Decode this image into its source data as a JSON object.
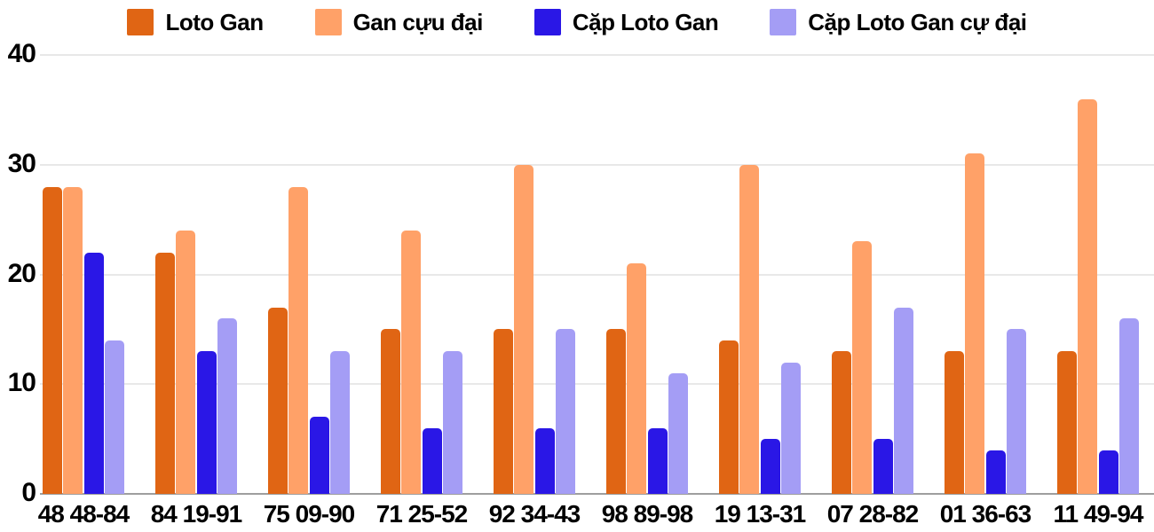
{
  "colors": {
    "background": "#ffffff",
    "grid": "#e8e8e8",
    "baseline": "#9e9e9e",
    "text": "#000000"
  },
  "chart_data": {
    "type": "bar",
    "categories": [
      "48 48-84",
      "84 19-91",
      "75 09-90",
      "71 25-52",
      "92 34-43",
      "98 89-98",
      "19 13-31",
      "07 28-82",
      "01 36-63",
      "11 49-94"
    ],
    "series": [
      {
        "name": "Loto Gan",
        "color": "#e06514",
        "values": [
          28,
          22,
          17,
          15,
          15,
          15,
          14,
          13,
          13,
          13
        ]
      },
      {
        "name": "Gan cựu đại",
        "color": "#ffa168",
        "values": [
          28,
          24,
          28,
          24,
          30,
          21,
          30,
          23,
          31,
          36
        ]
      },
      {
        "name": "Cặp Loto Gan",
        "color": "#2a17e6",
        "values": [
          22,
          13,
          7,
          6,
          6,
          6,
          5,
          5,
          4,
          4
        ]
      },
      {
        "name": "Cặp Loto Gan cự đại",
        "color": "#a49df5",
        "values": [
          14,
          16,
          13,
          13,
          15,
          11,
          12,
          17,
          15,
          16
        ]
      }
    ],
    "ylim": [
      0,
      40
    ],
    "yticks": [
      0,
      10,
      20,
      30,
      40
    ],
    "grid": true,
    "legend_position": "top"
  }
}
